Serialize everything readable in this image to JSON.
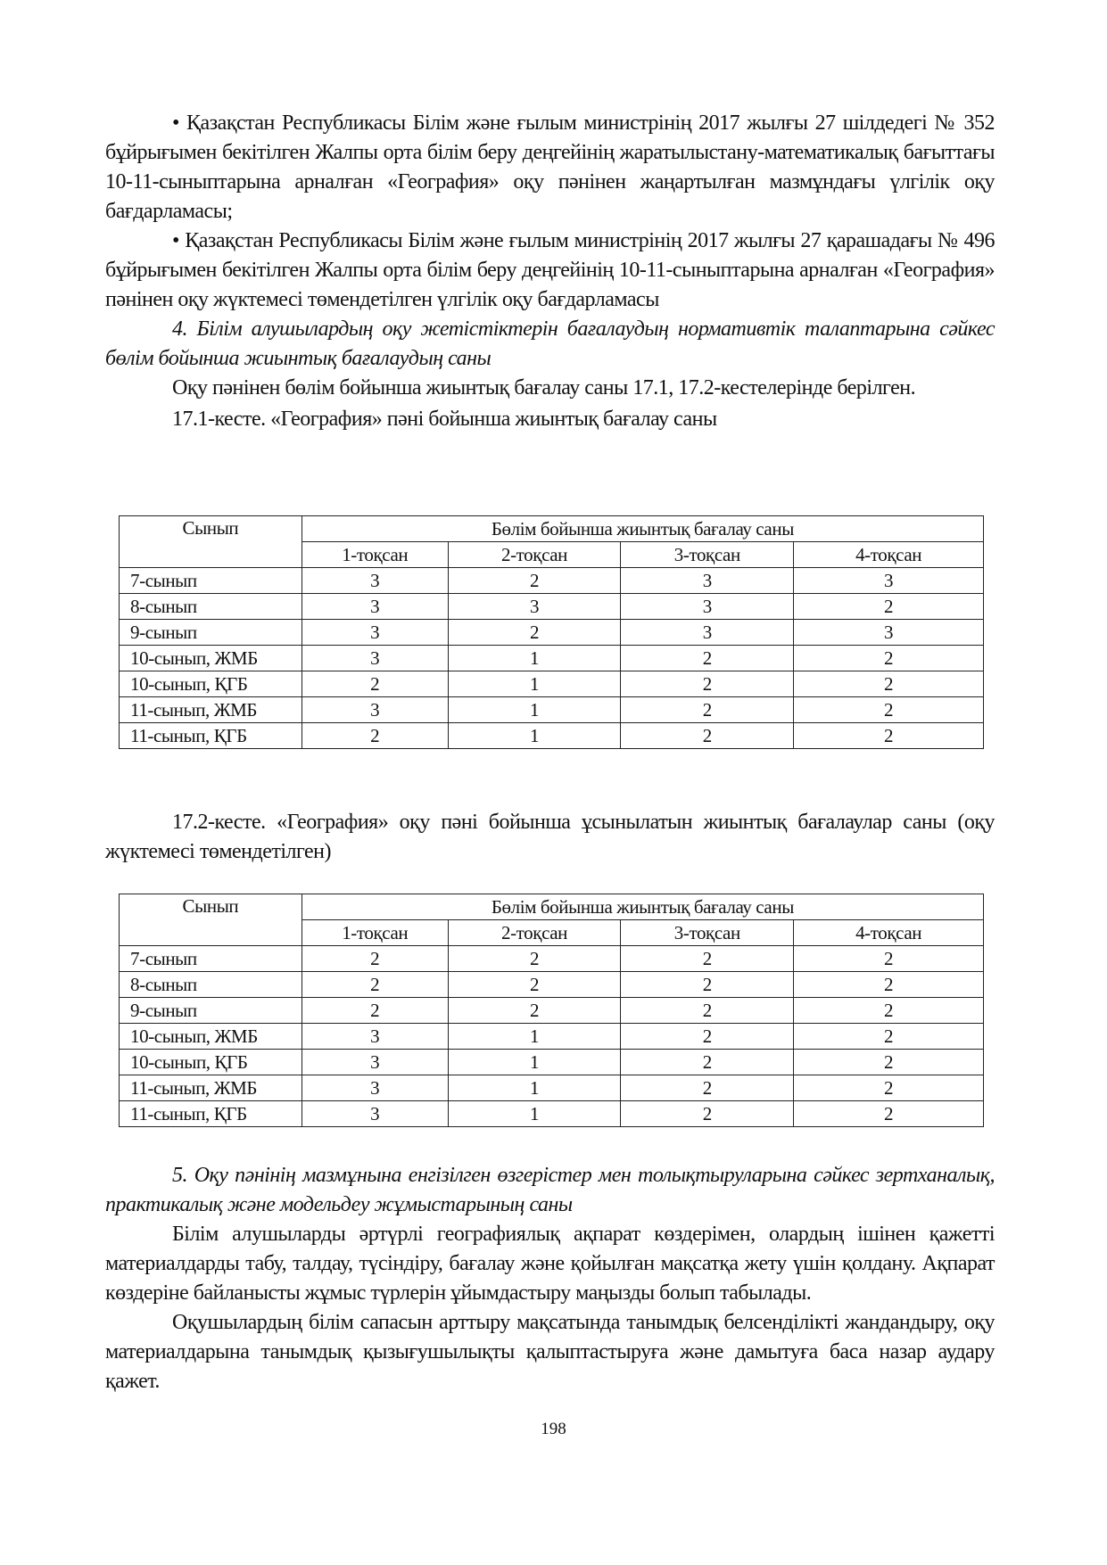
{
  "paragraphs_top": [
    {
      "style": "bullet",
      "text": "•  Қазақстан Республикасы Білім және ғылым министрінің 2017 жылғы 27 шілдедегі № 352 бұйрығымен бекітілген Жалпы орта білім беру деңгейінің жаратылыстану-математикалық бағыттағы 10-11-сыныптарына арналған «География» оқу пәнінен жаңартылған мазмұндағы үлгілік оқу бағдарламасы;"
    },
    {
      "style": "bullet",
      "text": "•  Қазақстан Республикасы Білім және ғылым министрінің 2017 жылғы 27 қарашадағы № 496 бұйрығымен бекітілген Жалпы орта білім беру деңгейінің 10-11-сыныптарына арналған «География» пәнінен оқу жүктемесі төмендетілген үлгілік оқу бағдарламасы"
    },
    {
      "style": "italic",
      "text": "4. Білім алушылардың оқу жетістіктерін бағалаудың нормативтік талаптарына сәйкес бөлім бойынша жиынтық бағалаудың саны"
    },
    {
      "style": "normal",
      "text": "Оқу пәнінен бөлім бойынша жиынтық бағалау саны 17.1, 17.2-кестелерінде берілген."
    }
  ],
  "table1": {
    "caption": "17.1-кесте. «География» пәні бойынша жиынтық бағалау саны",
    "col_header": "Сынып",
    "group_header": "Бөлім бойынша жиынтық бағалау саны",
    "quarters": [
      "1-тоқсан",
      "2-тоқсан",
      "3-тоқсан",
      "4-тоқсан"
    ],
    "rows": [
      {
        "label": "7-сынып",
        "values": [
          "3",
          "2",
          "3",
          "3"
        ]
      },
      {
        "label": "8-сынып",
        "values": [
          "3",
          "3",
          "3",
          "2"
        ]
      },
      {
        "label": "9-сынып",
        "values": [
          "3",
          "2",
          "3",
          "3"
        ]
      },
      {
        "label": "10-сынып, ЖМБ",
        "values": [
          "3",
          "1",
          "2",
          "2"
        ]
      },
      {
        "label": "10-сынып, ҚГБ",
        "values": [
          "2",
          "1",
          "2",
          "2"
        ]
      },
      {
        "label": "11-сынып, ЖМБ",
        "values": [
          "3",
          "1",
          "2",
          "2"
        ]
      },
      {
        "label": "11-сынып, ҚГБ",
        "values": [
          "2",
          "1",
          "2",
          "2"
        ]
      }
    ]
  },
  "table2": {
    "caption": "17.2-кесте. «География» оқу пәні бойынша ұсынылатын жиынтық бағалаулар саны (оқу жүктемесі төмендетілген)",
    "col_header": "Сынып",
    "group_header": "Бөлім бойынша жиынтық бағалау саны",
    "quarters": [
      "1-тоқсан",
      "2-тоқсан",
      "3-тоқсан",
      "4-тоқсан"
    ],
    "rows": [
      {
        "label": "7-сынып",
        "values": [
          "2",
          "2",
          "2",
          "2"
        ]
      },
      {
        "label": "8-сынып",
        "values": [
          "2",
          "2",
          "2",
          "2"
        ]
      },
      {
        "label": "9-сынып",
        "values": [
          "2",
          "2",
          "2",
          "2"
        ]
      },
      {
        "label": "10-сынып, ЖМБ",
        "values": [
          "3",
          "1",
          "2",
          "2"
        ]
      },
      {
        "label": "10-сынып, ҚГБ",
        "values": [
          "3",
          "1",
          "2",
          "2"
        ]
      },
      {
        "label": "11-сынып, ЖМБ",
        "values": [
          "3",
          "1",
          "2",
          "2"
        ]
      },
      {
        "label": "11-сынып, ҚГБ",
        "values": [
          "3",
          "1",
          "2",
          "2"
        ]
      }
    ]
  },
  "paragraphs_bottom": [
    {
      "style": "italic",
      "text": "5. Оқу пәнінің мазмұнына енгізілген өзгерістер мен толықтыруларына сәйкес зертханалық, практикалық  және модельдеу жұмыстарының саны"
    },
    {
      "style": "normal",
      "text": "Білім алушыларды әртүрлі географиялық ақпарат көздерімен, олардың ішінен қажетті материалдарды табу, талдау, түсіндіру, бағалау және қойылған мақсатқа жету үшін қолдану. Ақпарат көздеріне байланысты жұмыс түрлерін ұйымдастыру маңызды болып табылады."
    },
    {
      "style": "normal",
      "text": "Оқушылардың білім сапасын арттыру мақсатында танымдық белсенділікті жандандыру, оқу материалдарына танымдық қызығушылықты қалыптастыруға және дамытуға баса назар аудару қажет."
    }
  ],
  "page_number": "198"
}
